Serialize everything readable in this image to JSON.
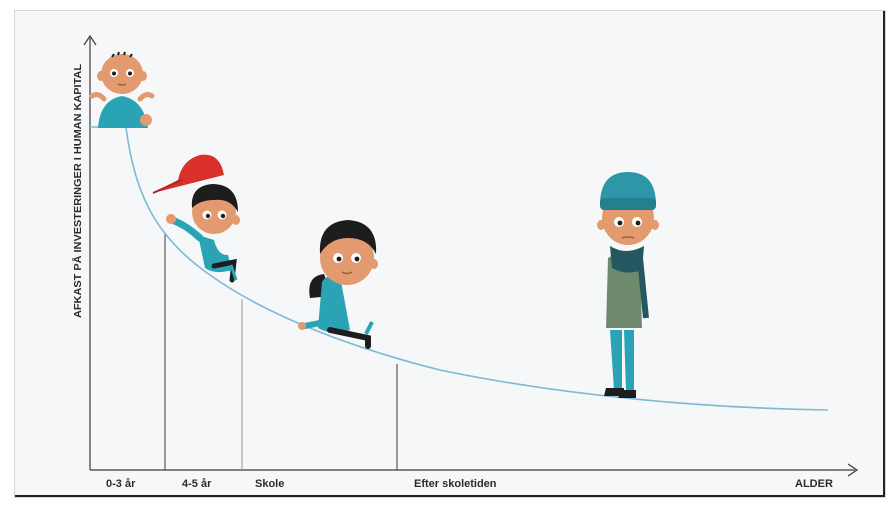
{
  "diagram": {
    "y_axis_label": "AFKAST PÅ INVESTERINGER I HUMAN KAPITAL",
    "x_axis_label": "ALDER",
    "age_groups": [
      {
        "label": "0-3 år"
      },
      {
        "label": "4-5 år"
      },
      {
        "label": "Skole"
      },
      {
        "label": "Efter skoletiden"
      }
    ]
  },
  "colors": {
    "curve": "#7fb8d4",
    "axis": "#3a3a3a",
    "skin": "#e39a6e",
    "teal": "#2aa3b5",
    "cap_red": "#d9302c",
    "hair": "#1d1d1d",
    "coat": "#6d8a6e"
  }
}
